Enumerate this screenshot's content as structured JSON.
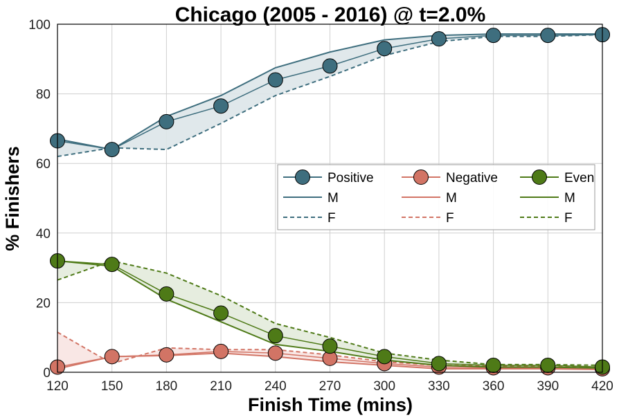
{
  "chart_data": {
    "type": "line",
    "title": "Chicago (2005 - 2016) @ t=2.0%",
    "xlabel": "Finish Time (mins)",
    "ylabel": "% Finishers",
    "x": [
      120,
      150,
      180,
      210,
      240,
      270,
      300,
      330,
      360,
      390,
      420
    ],
    "xlim": [
      120,
      420
    ],
    "ylim": [
      0,
      100
    ],
    "xticks": [
      120,
      150,
      180,
      210,
      240,
      270,
      300,
      330,
      360,
      390,
      420
    ],
    "yticks": [
      0,
      20,
      40,
      60,
      80,
      100
    ],
    "grid": true,
    "legend_position": "center-right",
    "legend_col_headers": [
      "Positive",
      "Negative",
      "Even"
    ],
    "legend_row_labels": [
      "M",
      "F"
    ],
    "series": [
      {
        "name": "Positive",
        "color": "#3e6e7e",
        "fill": "#dde6e9",
        "all": [
          66.5,
          64,
          72,
          76.5,
          84,
          88,
          93,
          95.8,
          96.8,
          96.8,
          97
        ],
        "M": [
          67,
          64,
          73.5,
          79.5,
          87.5,
          92,
          95.5,
          96.8,
          97.2,
          97.2,
          97.2
        ],
        "F": [
          62,
          64.5,
          64,
          71.5,
          79.5,
          85,
          91,
          95,
          96.5,
          96.5,
          97
        ]
      },
      {
        "name": "Negative",
        "color": "#d27465",
        "fill": "#f8e4e2",
        "all": [
          1.5,
          4.5,
          5,
          6,
          5.5,
          4,
          2.5,
          1.5,
          1.3,
          1.3,
          1
        ],
        "M": [
          1,
          4.5,
          4.8,
          5.5,
          4.5,
          3,
          2,
          1,
          1,
          1,
          0.8
        ],
        "F": [
          11.5,
          2.5,
          7,
          6.5,
          6.5,
          5,
          3,
          2,
          1.8,
          1.8,
          1.5
        ]
      },
      {
        "name": "Even",
        "color": "#4e7a17",
        "fill": "#e3ebdc",
        "all": [
          32,
          31,
          22.5,
          17,
          10.5,
          7.5,
          4.5,
          2.5,
          2,
          2,
          1.5
        ],
        "M": [
          32,
          30.5,
          21,
          14.5,
          8,
          6,
          3.5,
          2,
          1.5,
          1.5,
          1.2
        ],
        "F": [
          26.5,
          32,
          28.5,
          22,
          14,
          10,
          5.5,
          3.5,
          2.2,
          2.2,
          2
        ]
      }
    ]
  }
}
